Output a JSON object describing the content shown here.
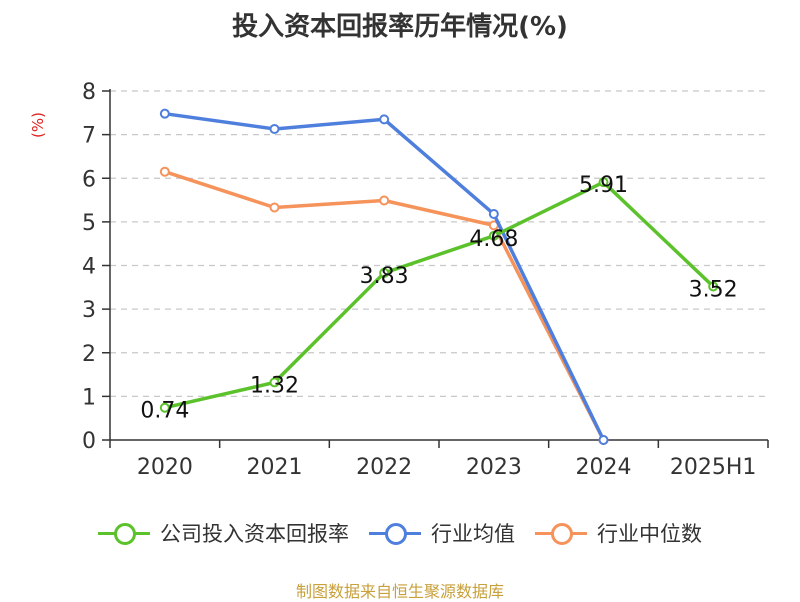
{
  "chart_data": {
    "type": "line",
    "title": "投入资本回报率历年情况(%)",
    "ylabel": "(%)",
    "xlabel": "",
    "categories": [
      "2020",
      "2021",
      "2022",
      "2023",
      "2024",
      "2025H1"
    ],
    "ylim": [
      0,
      8
    ],
    "yticks": [
      0,
      1,
      2,
      3,
      4,
      5,
      6,
      7,
      8
    ],
    "grid": true,
    "legend_position": "bottom",
    "series": [
      {
        "name": "公司投入资本回报率",
        "color": "#5cc22c",
        "values": [
          0.74,
          1.32,
          3.83,
          4.68,
          5.91,
          3.52
        ],
        "labels": [
          "0.74",
          "1.32",
          "3.83",
          "4.68",
          "5.91",
          "3.52"
        ]
      },
      {
        "name": "行业均值",
        "color": "#4f7fdd",
        "values": [
          7.48,
          7.13,
          7.35,
          5.18,
          0.0,
          null
        ]
      },
      {
        "name": "行业中位数",
        "color": "#f5935b",
        "values": [
          6.15,
          5.33,
          5.49,
          4.92,
          0.0,
          null
        ]
      }
    ]
  },
  "footer": {
    "source": "制图数据来自恒生聚源数据库"
  }
}
